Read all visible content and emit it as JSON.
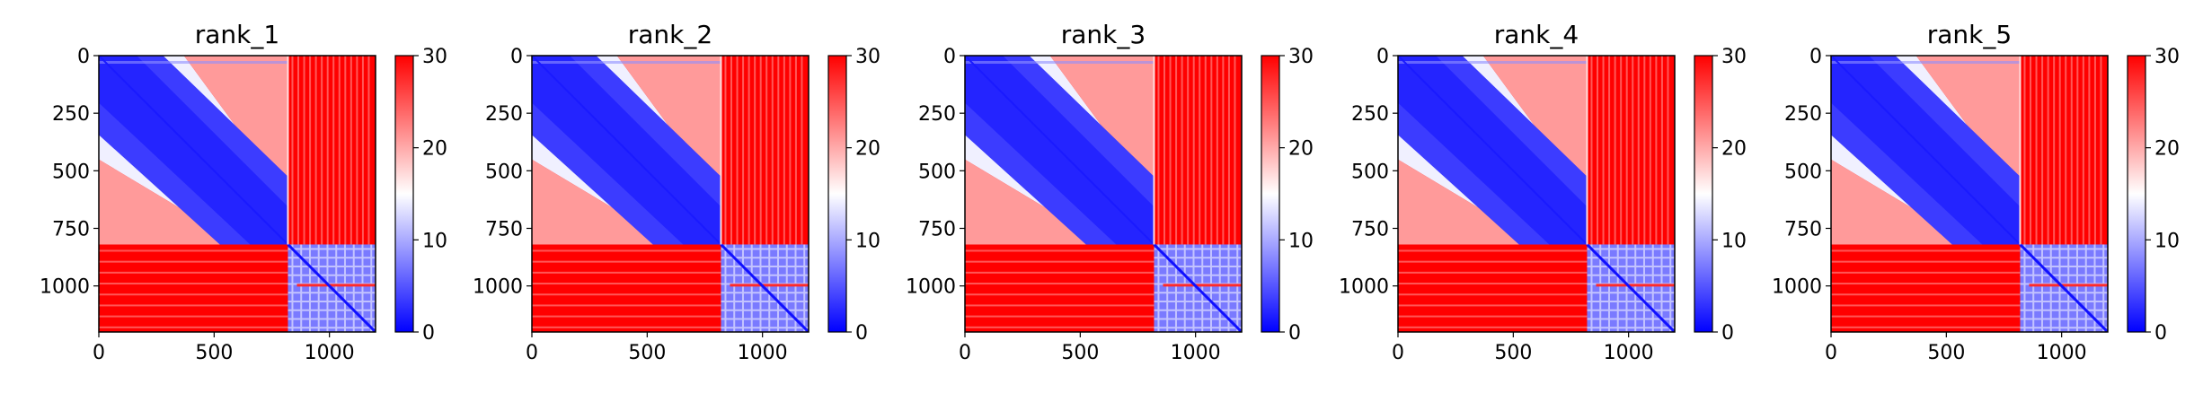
{
  "chart_data": [
    {
      "type": "heatmap",
      "title": "rank_1",
      "xlabel": "",
      "ylabel": "",
      "matrix_size": 1200,
      "block_split": 820,
      "xlim": [
        0,
        1200
      ],
      "ylim": [
        1200,
        0
      ],
      "x_ticks": [
        0,
        500,
        1000
      ],
      "y_ticks": [
        0,
        250,
        500,
        750,
        1000
      ],
      "colorbar": {
        "min": 0,
        "max": 30,
        "ticks": [
          0,
          10,
          20,
          30
        ],
        "colormap": "bwr"
      },
      "grid": false
    },
    {
      "type": "heatmap",
      "title": "rank_2",
      "xlabel": "",
      "ylabel": "",
      "matrix_size": 1200,
      "block_split": 820,
      "xlim": [
        0,
        1200
      ],
      "ylim": [
        1200,
        0
      ],
      "x_ticks": [
        0,
        500,
        1000
      ],
      "y_ticks": [
        0,
        250,
        500,
        750,
        1000
      ],
      "colorbar": {
        "min": 0,
        "max": 30,
        "ticks": [
          0,
          10,
          20,
          30
        ],
        "colormap": "bwr"
      },
      "grid": false
    },
    {
      "type": "heatmap",
      "title": "rank_3",
      "xlabel": "",
      "ylabel": "",
      "matrix_size": 1200,
      "block_split": 820,
      "xlim": [
        0,
        1200
      ],
      "ylim": [
        1200,
        0
      ],
      "x_ticks": [
        0,
        500,
        1000
      ],
      "y_ticks": [
        0,
        250,
        500,
        750,
        1000
      ],
      "colorbar": {
        "min": 0,
        "max": 30,
        "ticks": [
          0,
          10,
          20,
          30
        ],
        "colormap": "bwr"
      },
      "grid": false
    },
    {
      "type": "heatmap",
      "title": "rank_4",
      "xlabel": "",
      "ylabel": "",
      "matrix_size": 1200,
      "block_split": 820,
      "xlim": [
        0,
        1200
      ],
      "ylim": [
        1200,
        0
      ],
      "x_ticks": [
        0,
        500,
        1000
      ],
      "y_ticks": [
        0,
        250,
        500,
        750,
        1000
      ],
      "colorbar": {
        "min": 0,
        "max": 30,
        "ticks": [
          0,
          10,
          20,
          30
        ],
        "colormap": "bwr"
      },
      "grid": false
    },
    {
      "type": "heatmap",
      "title": "rank_5",
      "xlabel": "",
      "ylabel": "",
      "matrix_size": 1200,
      "block_split": 820,
      "xlim": [
        0,
        1200
      ],
      "ylim": [
        1200,
        0
      ],
      "x_ticks": [
        0,
        500,
        1000
      ],
      "y_ticks": [
        0,
        250,
        500,
        750,
        1000
      ],
      "colorbar": {
        "min": 0,
        "max": 30,
        "ticks": [
          0,
          10,
          20,
          30
        ],
        "colormap": "bwr"
      },
      "grid": false
    }
  ],
  "colors": {
    "low": "#0000ff",
    "mid": "#ffffff",
    "high": "#ff0000"
  }
}
